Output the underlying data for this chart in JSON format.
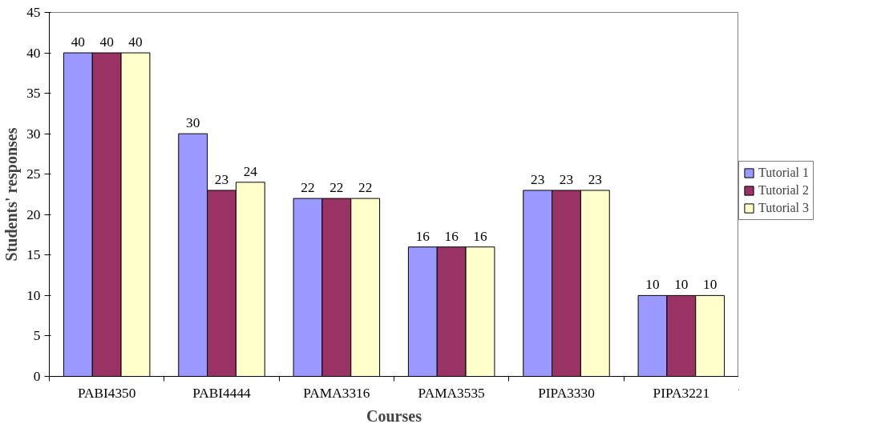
{
  "chart_data": {
    "type": "bar",
    "xlabel": "Courses",
    "ylabel": "Students' responses",
    "categories": [
      "PABI4350",
      "PABI4444",
      "PAMA3316",
      "PAMA3535",
      "PIPA3330",
      "PIPA3221"
    ],
    "series": [
      {
        "name": "Tutorial 1",
        "color": "#9999ff",
        "values": [
          40,
          30,
          22,
          16,
          23,
          10
        ]
      },
      {
        "name": "Tutorial 2",
        "color": "#993366",
        "values": [
          40,
          23,
          22,
          16,
          23,
          10
        ]
      },
      {
        "name": "Tutorial 3",
        "color": "#ffffcc",
        "values": [
          40,
          24,
          22,
          16,
          23,
          10
        ]
      }
    ],
    "ylim": [
      0,
      45
    ],
    "yticks": [
      0,
      5,
      10,
      15,
      20,
      25,
      30,
      35,
      40,
      45
    ],
    "data_labels": true,
    "grid": false,
    "legend": "right"
  }
}
